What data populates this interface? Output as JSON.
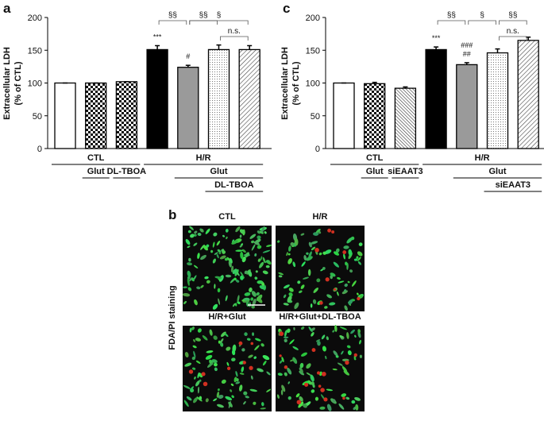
{
  "chart_data": [
    {
      "type": "bar",
      "panel": "a",
      "ylabel": [
        "Extracellular LDH",
        "(% of CTL)"
      ],
      "categories": [
        null,
        null,
        null,
        null,
        null,
        null,
        null
      ],
      "values": [
        100,
        100,
        102,
        151,
        124,
        151,
        151
      ],
      "errors": [
        0,
        0,
        0,
        6,
        3,
        7,
        6
      ],
      "patterns": [
        "white",
        "checker",
        "checker",
        "black",
        "gray",
        "dots",
        "hatch"
      ],
      "ylim": [
        0,
        200
      ],
      "yticks": [
        0,
        50,
        100,
        150,
        200
      ],
      "bar_labels": [
        {
          "bar": 3,
          "lines": [
            "***"
          ]
        },
        {
          "bar": 4,
          "lines": [
            "#"
          ]
        }
      ],
      "brackets": [
        {
          "bars": [
            3,
            4
          ],
          "label": "§§"
        },
        {
          "bars": [
            4,
            5
          ],
          "label": "§§"
        },
        {
          "bars": [
            4,
            6
          ],
          "label": "§"
        },
        {
          "bars": [
            5,
            6
          ],
          "label": "n.s."
        }
      ],
      "groups": [
        {
          "label": "CTL",
          "bars": [
            0,
            2
          ]
        },
        {
          "label": "Glut",
          "bars": [
            1,
            1
          ]
        },
        {
          "label": "DL-TBOA",
          "bars": [
            2,
            2
          ]
        },
        {
          "label": "H/R",
          "bars": [
            3,
            6
          ]
        },
        {
          "label": "Glut",
          "bars": [
            4,
            6
          ]
        },
        {
          "label": "DL-TBOA",
          "bars": [
            5,
            6
          ]
        }
      ]
    },
    {
      "type": "bar",
      "panel": "c",
      "ylabel": [
        "Extracellular LDH",
        "(% of CTL)"
      ],
      "categories": [
        null,
        null,
        null,
        null,
        null,
        null,
        null
      ],
      "values": [
        100,
        99,
        92,
        151,
        128,
        146,
        165
      ],
      "errors": [
        0,
        2,
        2,
        4,
        3,
        6,
        5
      ],
      "patterns": [
        "white",
        "checker",
        "hatch2",
        "black",
        "gray",
        "dots",
        "hatch"
      ],
      "ylim": [
        0,
        200
      ],
      "yticks": [
        0,
        50,
        100,
        150,
        200
      ],
      "bar_labels": [
        {
          "bar": 3,
          "lines": [
            "***"
          ]
        },
        {
          "bar": 4,
          "lines": [
            "###",
            "##"
          ]
        }
      ],
      "brackets": [
        {
          "bars": [
            3,
            4
          ],
          "label": "§§"
        },
        {
          "bars": [
            4,
            5
          ],
          "label": "§"
        },
        {
          "bars": [
            5,
            6
          ],
          "label": "§§"
        },
        {
          "bars": [
            5,
            6
          ],
          "label": "n.s."
        }
      ],
      "groups": [
        {
          "label": "CTL",
          "bars": [
            0,
            2
          ]
        },
        {
          "label": "Glut",
          "bars": [
            1,
            1
          ]
        },
        {
          "label": "siEAAT3",
          "bars": [
            2,
            2
          ]
        },
        {
          "label": "H/R",
          "bars": [
            3,
            6
          ]
        },
        {
          "label": "Glut",
          "bars": [
            4,
            6
          ]
        },
        {
          "label": "siEAAT3",
          "bars": [
            5,
            6
          ]
        }
      ]
    }
  ],
  "panel_b": {
    "label": "b",
    "ylabel": "FDA/PI staining",
    "images": [
      {
        "title": "CTL"
      },
      {
        "title": "H/R"
      },
      {
        "title": "H/R+Glut"
      },
      {
        "title": "H/R+Glut+DL-TBOA"
      }
    ]
  }
}
